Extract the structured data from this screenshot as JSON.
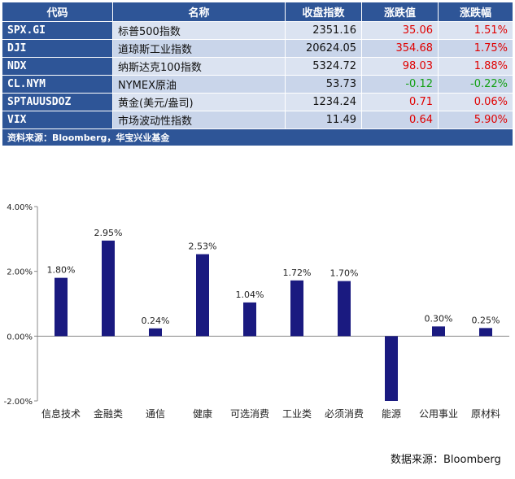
{
  "table": {
    "headers": [
      "代码",
      "名称",
      "收盘指数",
      "涨跌值",
      "涨跌幅"
    ],
    "rows": [
      {
        "code": "SPX.GI",
        "name": "标普500指数",
        "close": "2351.16",
        "change": "35.06",
        "pct": "1.51%",
        "dir": "pos"
      },
      {
        "code": "DJI",
        "name": "道琼斯工业指数",
        "close": "20624.05",
        "change": "354.68",
        "pct": "1.75%",
        "dir": "pos"
      },
      {
        "code": "NDX",
        "name": "纳斯达克100指数",
        "close": "5324.72",
        "change": "98.03",
        "pct": "1.88%",
        "dir": "pos"
      },
      {
        "code": "CL.NYM",
        "name": "NYMEX原油",
        "close": "53.73",
        "change": "-0.12",
        "pct": "-0.22%",
        "dir": "neg"
      },
      {
        "code": "SPTAUUSDOZ",
        "name": "黄金(美元/盎司)",
        "close": "1234.24",
        "change": "0.71",
        "pct": "0.06%",
        "dir": "pos"
      },
      {
        "code": "VIX",
        "name": "市场波动性指数",
        "close": "11.49",
        "change": "0.64",
        "pct": "5.90%",
        "dir": "pos"
      }
    ],
    "source": "资料来源：Bloomberg，华宝兴业基金"
  },
  "chart_data": {
    "type": "bar",
    "categories": [
      "信息技术",
      "金融类",
      "通信",
      "健康",
      "可选消费",
      "工业类",
      "必须消费",
      "能源",
      "公用事业",
      "原材料"
    ],
    "values": [
      1.8,
      2.95,
      0.24,
      2.53,
      1.04,
      1.72,
      1.7,
      -2.0,
      0.3,
      0.25
    ],
    "data_labels": [
      "1.80%",
      "2.95%",
      "0.24%",
      "2.53%",
      "1.04%",
      "1.72%",
      "1.70%",
      "",
      "0.30%",
      "0.25%"
    ],
    "yticks": [
      4.0,
      2.0,
      0.0,
      -2.0
    ],
    "ytick_labels": [
      "4.00%",
      "2.00%",
      "0.00%",
      "-2.00%"
    ],
    "ylim": [
      -2.0,
      4.0
    ],
    "bar_color": "#1a1a80",
    "grid": false,
    "source": "数据来源：Bloomberg"
  }
}
